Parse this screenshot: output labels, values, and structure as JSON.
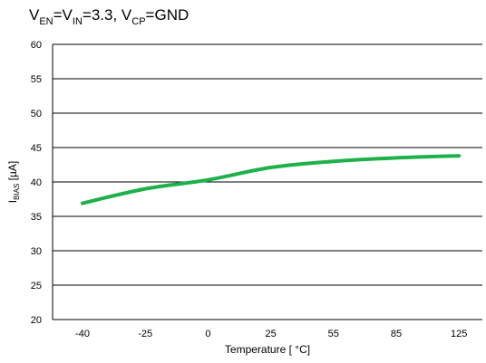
{
  "chart_data": {
    "type": "line",
    "title": {
      "v1": "V",
      "v1_sub": "EN",
      "eq1": "=V",
      "v2_sub": "IN",
      "eq2": "=3.3, V",
      "v3_sub": "CP",
      "eq3": "=GND"
    },
    "xlabel": "Temperature [ °C]",
    "ylabel": {
      "main": "I",
      "sub": "BIAS",
      "unit": " [µA]"
    },
    "categories": [
      "-40",
      "-25",
      "0",
      "25",
      "55",
      "85",
      "125"
    ],
    "series": [
      {
        "values": [
          36.9,
          39.0,
          40.3,
          42.1,
          43.0,
          43.5,
          43.8
        ],
        "color": "#1db14b"
      }
    ],
    "ylim": [
      20,
      60
    ],
    "yticks": [
      20,
      25,
      30,
      35,
      40,
      45,
      50,
      55,
      60
    ],
    "grid": "horizontal"
  }
}
